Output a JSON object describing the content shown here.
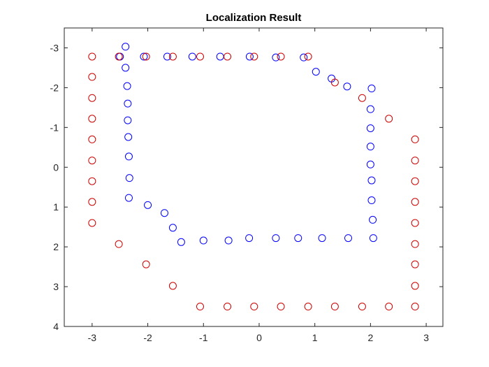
{
  "chart_data": {
    "type": "scatter",
    "title": "Localization Result",
    "xlabel": "",
    "ylabel": "",
    "xlim": [
      -3.5,
      3.3
    ],
    "ylim": [
      -3.5,
      4
    ],
    "y_reversed": true,
    "xticks": [
      -3,
      -2,
      -1,
      0,
      1,
      2,
      3
    ],
    "yticks": [
      -3,
      -2,
      -1,
      0,
      1,
      2,
      3,
      4
    ],
    "grid": false,
    "legend": "none",
    "series": [
      {
        "color": "#0000ff",
        "marker": "circle-open",
        "points": [
          [
            -2.4,
            -3.03
          ],
          [
            -2.5,
            -2.78
          ],
          [
            -2.07,
            -2.78
          ],
          [
            -1.65,
            -2.78
          ],
          [
            -1.2,
            -2.78
          ],
          [
            -0.7,
            -2.78
          ],
          [
            -0.17,
            -2.78
          ],
          [
            0.3,
            -2.76
          ],
          [
            0.8,
            -2.76
          ],
          [
            -2.4,
            -2.5
          ],
          [
            -2.37,
            -2.04
          ],
          [
            -2.36,
            -1.6
          ],
          [
            -2.36,
            -1.18
          ],
          [
            -2.35,
            -0.76
          ],
          [
            -2.34,
            -0.27
          ],
          [
            -2.33,
            0.27
          ],
          [
            -2.34,
            0.77
          ],
          [
            1.02,
            -2.4
          ],
          [
            1.3,
            -2.23
          ],
          [
            1.58,
            -2.03
          ],
          [
            2.02,
            -1.98
          ],
          [
            2.0,
            -1.46
          ],
          [
            2.0,
            -0.98
          ],
          [
            2.0,
            -0.52
          ],
          [
            2.0,
            -0.07
          ],
          [
            2.02,
            0.33
          ],
          [
            2.02,
            0.83
          ],
          [
            2.04,
            1.32
          ],
          [
            2.05,
            1.78
          ],
          [
            -2.0,
            0.95
          ],
          [
            -1.7,
            1.15
          ],
          [
            -1.55,
            1.52
          ],
          [
            -1.4,
            1.88
          ],
          [
            -1.0,
            1.84
          ],
          [
            -0.55,
            1.84
          ],
          [
            -0.18,
            1.78
          ],
          [
            0.3,
            1.78
          ],
          [
            0.7,
            1.78
          ],
          [
            1.13,
            1.78
          ],
          [
            1.6,
            1.78
          ]
        ]
      },
      {
        "color": "#cc0000",
        "marker": "circle-open",
        "points": [
          [
            -3.0,
            -2.78
          ],
          [
            -2.52,
            -2.78
          ],
          [
            -2.03,
            -2.78
          ],
          [
            -1.55,
            -2.78
          ],
          [
            -1.06,
            -2.78
          ],
          [
            -0.57,
            -2.78
          ],
          [
            -0.09,
            -2.78
          ],
          [
            0.39,
            -2.78
          ],
          [
            0.88,
            -2.78
          ],
          [
            -3.0,
            -2.27
          ],
          [
            -3.0,
            -1.74
          ],
          [
            -3.0,
            -1.22
          ],
          [
            -3.0,
            -0.7
          ],
          [
            -3.0,
            -0.17
          ],
          [
            -3.0,
            0.35
          ],
          [
            -3.0,
            0.87
          ],
          [
            -3.0,
            1.4
          ],
          [
            -2.52,
            1.93
          ],
          [
            -2.03,
            2.44
          ],
          [
            -1.55,
            2.98
          ],
          [
            -1.06,
            3.5
          ],
          [
            -0.57,
            3.5
          ],
          [
            -0.09,
            3.5
          ],
          [
            0.39,
            3.5
          ],
          [
            0.88,
            3.5
          ],
          [
            1.36,
            3.5
          ],
          [
            1.85,
            3.5
          ],
          [
            2.33,
            3.5
          ],
          [
            2.8,
            3.5
          ],
          [
            2.8,
            2.98
          ],
          [
            2.8,
            2.44
          ],
          [
            2.8,
            1.93
          ],
          [
            2.8,
            1.4
          ],
          [
            2.8,
            0.87
          ],
          [
            2.8,
            0.35
          ],
          [
            2.8,
            -0.17
          ],
          [
            2.8,
            -0.7
          ],
          [
            2.33,
            -1.22
          ],
          [
            1.85,
            -1.74
          ],
          [
            1.36,
            -2.13
          ]
        ]
      }
    ]
  }
}
